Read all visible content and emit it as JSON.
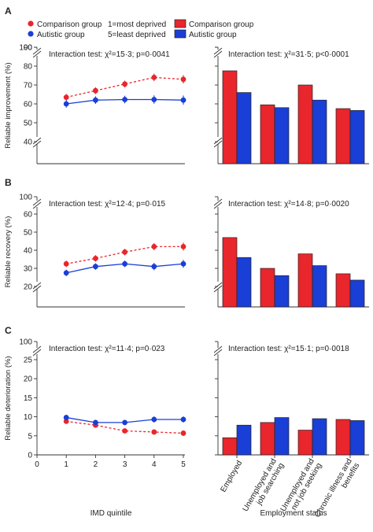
{
  "legend": {
    "comparison_label": "Comparison group",
    "autistic_label": "Autistic group",
    "imd_note_1": "1=most deprived",
    "imd_note_5": "5=least deprived",
    "comparison_color": "#e8262c",
    "autistic_color": "#1a3fd6"
  },
  "x_axis": {
    "left_label": "IMD quintile",
    "left_ticks": [
      "0",
      "1",
      "2",
      "3",
      "4",
      "5"
    ],
    "right_label": "Employment status",
    "right_ticks": [
      "Employed",
      "Unemployed and job searching",
      "Unemployed and not job seeking",
      "Chronic illness and benefits"
    ]
  },
  "chart_data": [
    {
      "panel": "A",
      "type": "line",
      "ylabel": "Reliable improvement (%)",
      "interaction_text": "Interaction test: χ²=15·3; p=0·0041",
      "x": [
        1,
        2,
        3,
        4,
        5
      ],
      "y_ticks": [
        40,
        50,
        60,
        70,
        80,
        90,
        100
      ],
      "axis_break": true,
      "series": [
        {
          "name": "Comparison group",
          "values": [
            63.5,
            67.0,
            70.5,
            74.0,
            73.0
          ],
          "errors": [
            1.8,
            1.8,
            1.8,
            2.0,
            2.2
          ]
        },
        {
          "name": "Autistic group",
          "values": [
            60.0,
            62.0,
            62.3,
            62.3,
            62.0
          ],
          "errors": [
            2.0,
            2.0,
            2.0,
            2.2,
            2.4
          ]
        }
      ]
    },
    {
      "panel": "A",
      "type": "bar",
      "interaction_text": "Interaction test: χ²=31·5; p<0·0001",
      "categories": [
        "Employed",
        "Unemployed and job searching",
        "Unemployed and not job seeking",
        "Chronic illness and benefits"
      ],
      "series": [
        {
          "name": "Comparison group",
          "values": [
            77.5,
            59.5,
            70.0,
            57.5
          ]
        },
        {
          "name": "Autistic group",
          "values": [
            66.0,
            58.0,
            62.0,
            56.5
          ]
        }
      ]
    },
    {
      "panel": "B",
      "type": "line",
      "ylabel": "Reliable recovery (%)",
      "interaction_text": "Interaction test: χ²=12·4; p=0·015",
      "x": [
        1,
        2,
        3,
        4,
        5
      ],
      "y_ticks": [
        20,
        30,
        40,
        50,
        60,
        100
      ],
      "axis_break": true,
      "series": [
        {
          "name": "Comparison group",
          "values": [
            32.5,
            35.5,
            39.0,
            42.0,
            42.0
          ],
          "errors": [
            1.8,
            1.8,
            1.8,
            2.0,
            2.2
          ]
        },
        {
          "name": "Autistic group",
          "values": [
            27.5,
            31.0,
            32.5,
            31.0,
            32.5
          ],
          "errors": [
            1.8,
            1.8,
            1.8,
            2.0,
            2.2
          ]
        }
      ]
    },
    {
      "panel": "B",
      "type": "bar",
      "interaction_text": "Interaction test: χ²=14·8; p=0·0020",
      "categories": [
        "Employed",
        "Unemployed and job searching",
        "Unemployed and not job seeking",
        "Chronic illness and benefits"
      ],
      "series": [
        {
          "name": "Comparison group",
          "values": [
            47.0,
            30.0,
            38.0,
            27.0
          ]
        },
        {
          "name": "Autistic group",
          "values": [
            36.0,
            26.0,
            31.5,
            23.5
          ]
        }
      ]
    },
    {
      "panel": "C",
      "type": "line",
      "ylabel": "Reliable deterioration (%)",
      "interaction_text": "Interaction test: χ²=11·4; p=0·023",
      "x": [
        1,
        2,
        3,
        4,
        5
      ],
      "y_ticks": [
        0,
        5,
        10,
        15,
        20,
        25,
        100
      ],
      "axis_break": true,
      "series": [
        {
          "name": "Comparison group",
          "values": [
            8.8,
            7.8,
            6.3,
            6.0,
            5.7
          ],
          "errors": [
            0.6,
            0.6,
            0.6,
            0.6,
            0.7
          ]
        },
        {
          "name": "Autistic group",
          "values": [
            9.8,
            8.5,
            8.5,
            9.3,
            9.3
          ],
          "errors": [
            0.7,
            0.7,
            0.7,
            0.8,
            0.8
          ]
        }
      ]
    },
    {
      "panel": "C",
      "type": "bar",
      "interaction_text": "Interaction test: χ²=15·1; p=0·0018",
      "categories": [
        "Employed",
        "Unemployed and job searching",
        "Unemployed and not job seeking",
        "Chronic illness and benefits"
      ],
      "series": [
        {
          "name": "Comparison group",
          "values": [
            4.5,
            8.5,
            6.5,
            9.3
          ]
        },
        {
          "name": "Autistic group",
          "values": [
            7.8,
            9.8,
            9.5,
            9.0
          ]
        }
      ]
    }
  ]
}
